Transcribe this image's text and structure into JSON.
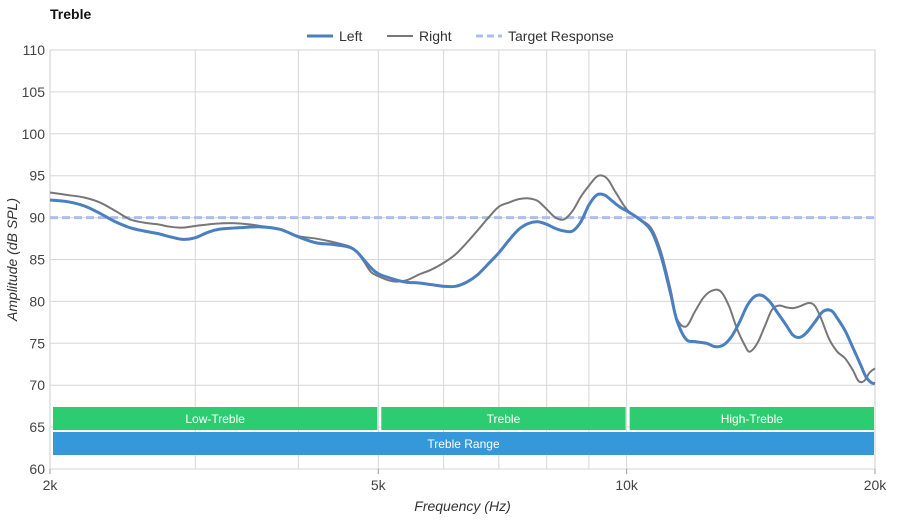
{
  "title": "Treble",
  "chart_data": {
    "type": "line",
    "xlabel": "Frequency (Hz)",
    "ylabel": "Amplitude (dB SPL)",
    "xscale": "log",
    "xlim": [
      2000,
      20000
    ],
    "ylim": [
      60,
      110
    ],
    "grid": true,
    "legend_position": "top-center",
    "x_ticks": [
      {
        "value": 2000,
        "label": "2k"
      },
      {
        "value": 5000,
        "label": "5k"
      },
      {
        "value": 10000,
        "label": "10k"
      },
      {
        "value": 20000,
        "label": "20k"
      }
    ],
    "y_ticks": [
      60,
      65,
      70,
      75,
      80,
      85,
      90,
      95,
      100,
      105,
      110
    ],
    "x_gridlines": [
      3000,
      4000,
      5000,
      6000,
      7000,
      8000,
      9000,
      10000
    ],
    "series": [
      {
        "name": "Left",
        "color": "#4a7fc0",
        "style": "solid-thick",
        "points": [
          [
            2000,
            92.1
          ],
          [
            2100,
            91.9
          ],
          [
            2200,
            91.4
          ],
          [
            2300,
            90.5
          ],
          [
            2400,
            89.5
          ],
          [
            2500,
            88.8
          ],
          [
            2600,
            88.4
          ],
          [
            2700,
            88.1
          ],
          [
            2800,
            87.7
          ],
          [
            2900,
            87.4
          ],
          [
            3000,
            87.6
          ],
          [
            3100,
            88.2
          ],
          [
            3200,
            88.6
          ],
          [
            3400,
            88.8
          ],
          [
            3600,
            88.9
          ],
          [
            3800,
            88.6
          ],
          [
            4000,
            87.7
          ],
          [
            4200,
            87.0
          ],
          [
            4400,
            86.8
          ],
          [
            4600,
            86.5
          ],
          [
            4700,
            86.0
          ],
          [
            4800,
            85.0
          ],
          [
            4900,
            84.0
          ],
          [
            5000,
            83.3
          ],
          [
            5200,
            82.7
          ],
          [
            5400,
            82.3
          ],
          [
            5600,
            82.2
          ],
          [
            5800,
            82.0
          ],
          [
            6000,
            81.8
          ],
          [
            6200,
            81.8
          ],
          [
            6400,
            82.3
          ],
          [
            6600,
            83.2
          ],
          [
            6800,
            84.5
          ],
          [
            7000,
            85.8
          ],
          [
            7200,
            87.3
          ],
          [
            7400,
            88.6
          ],
          [
            7600,
            89.3
          ],
          [
            7800,
            89.5
          ],
          [
            8000,
            89.2
          ],
          [
            8200,
            88.7
          ],
          [
            8400,
            88.4
          ],
          [
            8600,
            88.4
          ],
          [
            8800,
            89.5
          ],
          [
            9000,
            91.5
          ],
          [
            9200,
            92.7
          ],
          [
            9400,
            92.7
          ],
          [
            9600,
            92.0
          ],
          [
            9800,
            91.3
          ],
          [
            10000,
            90.8
          ],
          [
            10300,
            90.0
          ],
          [
            10700,
            88.5
          ],
          [
            11000,
            85.5
          ],
          [
            11300,
            81.0
          ],
          [
            11500,
            77.8
          ],
          [
            11800,
            75.5
          ],
          [
            12100,
            75.2
          ],
          [
            12500,
            75.0
          ],
          [
            12800,
            74.6
          ],
          [
            13100,
            74.8
          ],
          [
            13400,
            75.8
          ],
          [
            13700,
            77.5
          ],
          [
            14000,
            79.5
          ],
          [
            14300,
            80.6
          ],
          [
            14600,
            80.7
          ],
          [
            14900,
            80.0
          ],
          [
            15200,
            78.8
          ],
          [
            15600,
            77.2
          ],
          [
            15900,
            76.0
          ],
          [
            16200,
            75.7
          ],
          [
            16500,
            76.2
          ],
          [
            16900,
            77.5
          ],
          [
            17300,
            78.8
          ],
          [
            17700,
            78.9
          ],
          [
            18000,
            78.0
          ],
          [
            18400,
            76.5
          ],
          [
            18800,
            74.5
          ],
          [
            19200,
            72.5
          ],
          [
            19500,
            71.0
          ],
          [
            19800,
            70.3
          ],
          [
            20000,
            70.2
          ]
        ]
      },
      {
        "name": "Right",
        "color": "#777777",
        "style": "solid-thin",
        "points": [
          [
            2000,
            93.0
          ],
          [
            2100,
            92.7
          ],
          [
            2200,
            92.4
          ],
          [
            2300,
            91.8
          ],
          [
            2400,
            90.8
          ],
          [
            2500,
            89.8
          ],
          [
            2600,
            89.4
          ],
          [
            2700,
            89.2
          ],
          [
            2800,
            88.9
          ],
          [
            2900,
            88.8
          ],
          [
            3000,
            89.0
          ],
          [
            3200,
            89.3
          ],
          [
            3400,
            89.3
          ],
          [
            3600,
            89.0
          ],
          [
            3800,
            88.6
          ],
          [
            4000,
            87.8
          ],
          [
            4200,
            87.5
          ],
          [
            4400,
            87.1
          ],
          [
            4600,
            86.6
          ],
          [
            4700,
            86.0
          ],
          [
            4800,
            84.8
          ],
          [
            4900,
            83.5
          ],
          [
            5000,
            83.0
          ],
          [
            5200,
            82.4
          ],
          [
            5400,
            82.5
          ],
          [
            5600,
            83.2
          ],
          [
            5800,
            83.8
          ],
          [
            6000,
            84.6
          ],
          [
            6200,
            85.6
          ],
          [
            6400,
            87.0
          ],
          [
            6600,
            88.5
          ],
          [
            6800,
            90.0
          ],
          [
            7000,
            91.3
          ],
          [
            7200,
            91.8
          ],
          [
            7400,
            92.2
          ],
          [
            7600,
            92.3
          ],
          [
            7800,
            92.0
          ],
          [
            8000,
            91.0
          ],
          [
            8200,
            90.0
          ],
          [
            8400,
            89.8
          ],
          [
            8600,
            90.8
          ],
          [
            8800,
            92.5
          ],
          [
            9000,
            93.8
          ],
          [
            9200,
            94.9
          ],
          [
            9350,
            95.0
          ],
          [
            9500,
            94.5
          ],
          [
            9700,
            93.0
          ],
          [
            10000,
            91.0
          ],
          [
            10300,
            90.0
          ],
          [
            10700,
            88.8
          ],
          [
            11000,
            86.0
          ],
          [
            11300,
            81.5
          ],
          [
            11500,
            78.0
          ],
          [
            11800,
            77.0
          ],
          [
            12100,
            78.8
          ],
          [
            12400,
            80.5
          ],
          [
            12700,
            81.3
          ],
          [
            13000,
            81.2
          ],
          [
            13300,
            79.5
          ],
          [
            13600,
            76.8
          ],
          [
            13900,
            74.8
          ],
          [
            14100,
            74.0
          ],
          [
            14400,
            75.0
          ],
          [
            14700,
            77.0
          ],
          [
            15000,
            79.0
          ],
          [
            15300,
            79.5
          ],
          [
            15600,
            79.3
          ],
          [
            15900,
            79.2
          ],
          [
            16200,
            79.4
          ],
          [
            16600,
            79.8
          ],
          [
            16900,
            79.5
          ],
          [
            17200,
            78.0
          ],
          [
            17600,
            75.5
          ],
          [
            18000,
            74.0
          ],
          [
            18400,
            73.2
          ],
          [
            18800,
            71.8
          ],
          [
            19100,
            70.5
          ],
          [
            19400,
            70.5
          ],
          [
            19700,
            71.5
          ],
          [
            20000,
            72.0
          ]
        ]
      },
      {
        "name": "Target Response",
        "color": "#aebdf0",
        "style": "dashed",
        "points": [
          [
            2000,
            90.0
          ],
          [
            20000,
            90.0
          ]
        ]
      }
    ],
    "bands": [
      {
        "label": "Low-Treble",
        "x_start": 2000,
        "x_end": 5000,
        "row": 1,
        "color": "#2ecc71"
      },
      {
        "label": "Treble",
        "x_start": 5000,
        "x_end": 10000,
        "row": 1,
        "color": "#2ecc71"
      },
      {
        "label": "High-Treble",
        "x_start": 10000,
        "x_end": 20000,
        "row": 1,
        "color": "#2ecc71"
      },
      {
        "label": "Treble Range",
        "x_start": 2000,
        "x_end": 20000,
        "row": 2,
        "color": "#3498db"
      }
    ]
  }
}
